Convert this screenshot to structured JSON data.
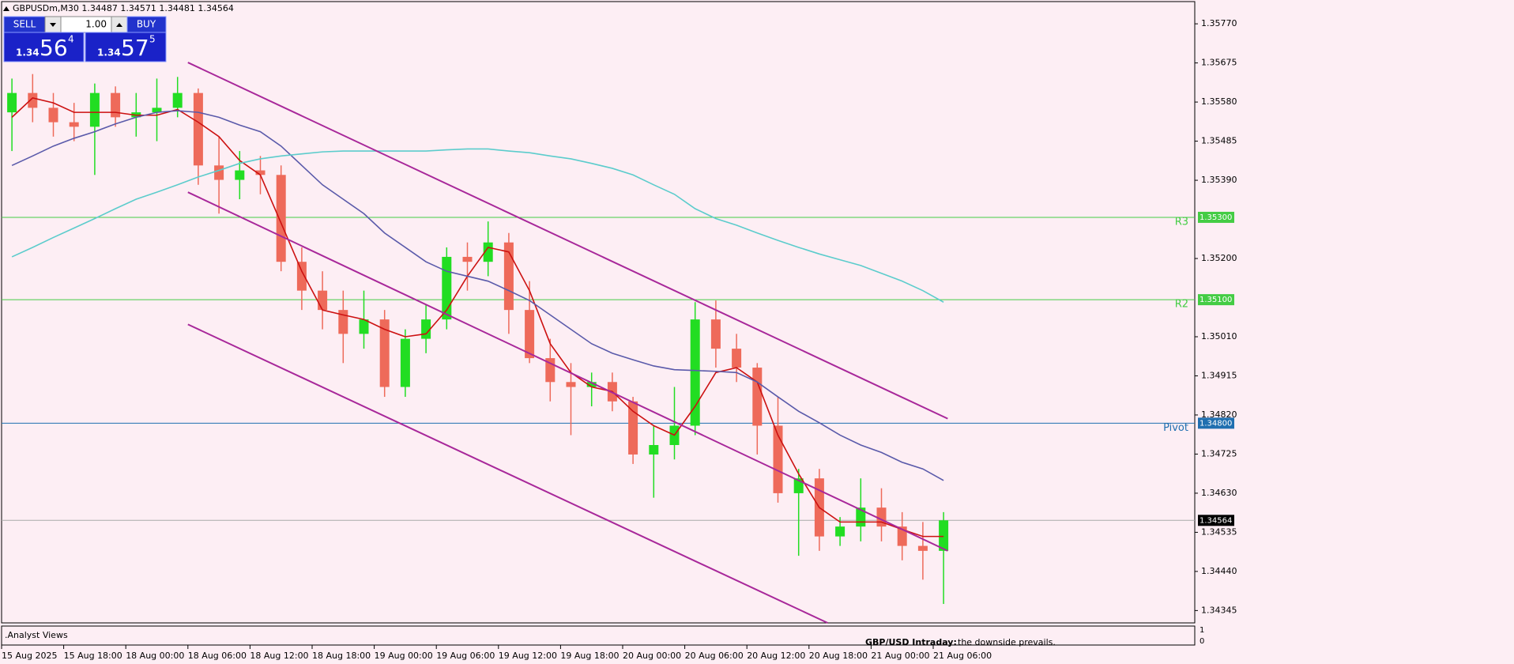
{
  "chart_data": {
    "type": "candlestick",
    "title": "GBPUSDm,M30  1.34487 1.34571 1.34481 1.34564",
    "x": [
      "15 Aug 2025",
      null,
      null,
      "15 Aug 18:00",
      null,
      null,
      "18 Aug 00:00",
      null,
      null,
      "18 Aug 06:00",
      null,
      null,
      "18 Aug 12:00",
      null,
      null,
      "18 Aug 18:00",
      null,
      null,
      "19 Aug 00:00",
      null,
      null,
      "19 Aug 06:00",
      null,
      null,
      "19 Aug 12:00",
      null,
      null,
      "19 Aug 18:00",
      null,
      null,
      "20 Aug 00:00",
      null,
      null,
      "20 Aug 06:00",
      null,
      null,
      "20 Aug 12:00",
      null,
      null,
      "20 Aug 18:00",
      null,
      null,
      "21 Aug 00:00",
      null,
      null,
      "21 Aug 06:00"
    ],
    "open": [
      1.35555,
      1.35602,
      1.35566,
      1.35531,
      1.3552,
      1.35602,
      1.35543,
      1.35555,
      1.35566,
      1.35602,
      1.35426,
      1.35391,
      1.35414,
      1.35403,
      1.35192,
      1.35122,
      1.35075,
      1.35017,
      1.35052,
      1.34888,
      1.35005,
      1.35052,
      1.35204,
      1.35192,
      1.35239,
      1.35075,
      1.34958,
      1.349,
      1.34888,
      1.349,
      1.34853,
      1.34724,
      1.34747,
      1.34794,
      1.35052,
      1.34981,
      1.34935,
      1.34794,
      1.3463,
      1.34666,
      1.34525,
      1.34549,
      1.34595,
      1.34549,
      1.34502,
      1.3449
    ],
    "high": [
      1.35637,
      1.35648,
      1.35602,
      1.35578,
      1.35625,
      1.35618,
      1.35602,
      1.35637,
      1.35641,
      1.35613,
      1.35496,
      1.35461,
      1.35449,
      1.35426,
      1.35227,
      1.35169,
      1.35122,
      1.35122,
      1.35075,
      1.35028,
      1.35087,
      1.35227,
      1.35239,
      1.3529,
      1.35262,
      1.35145,
      1.35005,
      1.34946,
      1.34923,
      1.34923,
      1.34864,
      1.34794,
      1.34888,
      1.35094,
      1.35098,
      1.35017,
      1.34946,
      1.34864,
      1.34689,
      1.34689,
      1.34572,
      1.34666,
      1.34642,
      1.34584,
      1.3456,
      1.34584
    ],
    "low": [
      1.35461,
      1.35531,
      1.35496,
      1.35485,
      1.35403,
      1.3552,
      1.35496,
      1.35485,
      1.35543,
      1.35379,
      1.35309,
      1.35344,
      1.35356,
      1.35169,
      1.35075,
      1.35028,
      1.34946,
      1.34981,
      1.34864,
      1.34864,
      1.3497,
      1.35028,
      1.35122,
      1.35157,
      1.35017,
      1.34946,
      1.34853,
      1.34771,
      1.34841,
      1.34829,
      1.34701,
      1.34619,
      1.34712,
      1.34771,
      1.34935,
      1.349,
      1.34724,
      1.34607,
      1.34478,
      1.3449,
      1.34502,
      1.34513,
      1.34513,
      1.34467,
      1.3442,
      1.34361
    ],
    "close": [
      1.35602,
      1.35566,
      1.35531,
      1.3552,
      1.35602,
      1.35543,
      1.35555,
      1.35566,
      1.35602,
      1.35426,
      1.35391,
      1.35414,
      1.35403,
      1.35192,
      1.35122,
      1.35075,
      1.35017,
      1.35052,
      1.34888,
      1.35005,
      1.35052,
      1.35204,
      1.35192,
      1.35239,
      1.35075,
      1.34958,
      1.349,
      1.34888,
      1.349,
      1.34853,
      1.34724,
      1.34747,
      1.34794,
      1.35052,
      1.34981,
      1.34935,
      1.34794,
      1.3463,
      1.34666,
      1.34525,
      1.34549,
      1.34595,
      1.34549,
      1.34502,
      1.3449,
      1.34564
    ],
    "up_color": "#22dd22",
    "down_color": "#ee6a5a",
    "series": [
      {
        "color": "#cc1111",
        "values": [
          1.35543,
          1.3559,
          1.35578,
          1.35555,
          1.35555,
          1.35555,
          1.35548,
          1.35548,
          1.35562,
          1.35531,
          1.35496,
          1.35438,
          1.35403,
          1.35286,
          1.35169,
          1.35075,
          1.35063,
          1.35052,
          1.35028,
          1.3501,
          1.35017,
          1.35075,
          1.35157,
          1.35227,
          1.35216,
          1.35122,
          1.34993,
          1.34923,
          1.34888,
          1.34877,
          1.34829,
          1.34794,
          1.34771,
          1.34841,
          1.34923,
          1.34935,
          1.349,
          1.34771,
          1.34677,
          1.34595,
          1.3456,
          1.3456,
          1.3456,
          1.34542,
          1.34525,
          1.34525
        ]
      },
      {
        "color": "#5a5aaa",
        "values": [
          1.35426,
          1.35449,
          1.35473,
          1.35492,
          1.35508,
          1.35527,
          1.35543,
          1.35555,
          1.35559,
          1.35555,
          1.35543,
          1.35524,
          1.35508,
          1.35473,
          1.35426,
          1.35379,
          1.35344,
          1.35309,
          1.35262,
          1.35227,
          1.35192,
          1.35169,
          1.35157,
          1.35145,
          1.35122,
          1.35098,
          1.35063,
          1.35028,
          1.34993,
          1.3497,
          1.34954,
          1.34939,
          1.3493,
          1.34928,
          1.34926,
          1.34923,
          1.349,
          1.34864,
          1.34829,
          1.34801,
          1.34771,
          1.34747,
          1.34729,
          1.34705,
          1.34689,
          1.34661
        ]
      },
      {
        "color": "#5ccccc",
        "values": [
          1.35204,
          1.35227,
          1.35251,
          1.35274,
          1.35297,
          1.35321,
          1.35344,
          1.35361,
          1.35379,
          1.35398,
          1.35414,
          1.35431,
          1.35442,
          1.35449,
          1.35454,
          1.35459,
          1.35461,
          1.35461,
          1.35461,
          1.35461,
          1.35461,
          1.35464,
          1.35466,
          1.35466,
          1.35461,
          1.35457,
          1.35449,
          1.35442,
          1.35431,
          1.35419,
          1.35403,
          1.35379,
          1.35356,
          1.35321,
          1.35297,
          1.35281,
          1.35262,
          1.35244,
          1.35227,
          1.35211,
          1.35197,
          1.35183,
          1.35164,
          1.35145,
          1.35122,
          1.35094
        ]
      }
    ],
    "trendlines": [
      {
        "color": "#a8289a",
        "x": [
          8.5,
          45.2
        ],
        "y": [
          1.35676,
          1.34811
        ]
      },
      {
        "color": "#a8289a",
        "x": [
          8.5,
          45.2
        ],
        "y": [
          1.35361,
          1.3449
        ]
      },
      {
        "color": "#a8289a",
        "x": [
          8.5,
          39.4
        ],
        "y": [
          1.3504,
          1.34315
        ]
      }
    ],
    "levels": [
      {
        "name": "R3",
        "value": 1.353,
        "label": "1.35300",
        "color": "#44cc44"
      },
      {
        "name": "R2",
        "value": 1.351,
        "label": "1.35100",
        "color": "#44cc44"
      },
      {
        "name": "Pivot",
        "value": 1.348,
        "label": "1.34800",
        "color": "#1f6fb0"
      }
    ],
    "last_price": 1.34564,
    "ylim": [
      1.34315,
      1.35824
    ],
    "yticks": [
      {
        "value": 1.3577,
        "label": "1.35770"
      },
      1.35675,
      {
        "value": 1.3558,
        "label": "1.35580"
      },
      1.35485,
      {
        "value": 1.3539,
        "label": "1.35390"
      },
      {
        "value": 1.352,
        "label": "1.35200"
      },
      {
        "value": 1.3501,
        "label": "1.35010"
      },
      1.34915,
      {
        "value": 1.3482,
        "label": "1.34820"
      },
      1.34725,
      {
        "value": 1.3463,
        "label": "1.34630"
      },
      1.34535,
      {
        "value": 1.3444,
        "label": "1.34440"
      },
      1.34345
    ]
  },
  "trade_panel": {
    "sell": "SELL",
    "lot": "1.00",
    "buy": "BUY",
    "bid": {
      "big": "1.34",
      "main": "56",
      "small": "4"
    },
    "ask": {
      "big": "1.34",
      "main": "57",
      "small": "5"
    }
  },
  "indicator_panel": {
    "name": ".Analyst Views",
    "headline": "GBP/USD Intraday:",
    "comment": "the downside prevails.",
    "ticks": [
      "1",
      "0"
    ]
  }
}
